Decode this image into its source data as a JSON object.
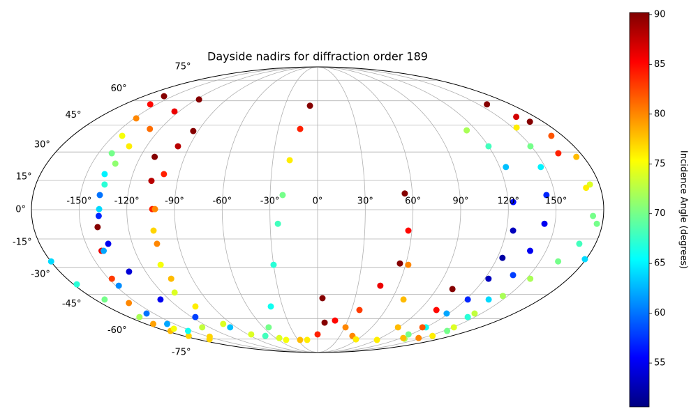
{
  "chart_data": {
    "type": "scatter",
    "projection": "mollweide",
    "title": "Dayside nadirs for diffraction order 189",
    "colormap": "jet",
    "grid": true,
    "colorbar": {
      "label": "Incidence Angle (degrees)",
      "lim": [
        50.6,
        90.2
      ],
      "ticks": [
        55,
        60,
        65,
        70,
        75,
        80,
        85,
        90
      ]
    },
    "xticks": [
      {
        "value": -150,
        "label": "-150°"
      },
      {
        "value": -120,
        "label": "-120°"
      },
      {
        "value": -90,
        "label": "-90°"
      },
      {
        "value": -60,
        "label": "-60°"
      },
      {
        "value": -30,
        "label": "-30°"
      },
      {
        "value": 0,
        "label": "0°"
      },
      {
        "value": 30,
        "label": "30°"
      },
      {
        "value": 60,
        "label": "60°"
      },
      {
        "value": 90,
        "label": "90°"
      },
      {
        "value": 120,
        "label": "120°"
      },
      {
        "value": 150,
        "label": "150°"
      }
    ],
    "yticks": [
      {
        "value": -75,
        "label": "-75°"
      },
      {
        "value": -60,
        "label": "-60°"
      },
      {
        "value": -45,
        "label": "-45°"
      },
      {
        "value": -30,
        "label": "-30°"
      },
      {
        "value": -15,
        "label": "-15°"
      },
      {
        "value": 0,
        "label": "0°"
      },
      {
        "value": 15,
        "label": "15°"
      },
      {
        "value": 30,
        "label": "30°"
      },
      {
        "value": 45,
        "label": "45°"
      },
      {
        "value": 60,
        "label": "60°"
      },
      {
        "value": 75,
        "label": "75°"
      }
    ],
    "series": [
      {
        "x": [
          -159.1,
          -155.9,
          -148.4,
          -143.6,
          -140.9,
          -138.3,
          -137.7,
          -137.8,
          -135.6,
          -131.6,
          -127.1,
          -116.6,
          -97.0,
          -70.2
        ],
        "y": [
          63.1,
          57.7,
          49.0,
          38.9,
          29.3,
          18.3,
          7.5,
          -3.2,
          -17.5,
          -32.3,
          -48.1,
          -59.0,
          -66.0,
          -72.4
        ],
        "values": [
          90,
          85,
          80,
          75,
          70,
          65,
          60,
          57,
          55,
          54,
          55,
          58,
          63,
          68
        ]
      },
      {
        "x": [
          -139.4,
          -141.9,
          -147.8,
          -156.8,
          -172.2,
          -175.0,
          -173.2,
          -162.0
        ],
        "y": [
          -8.9,
          -21.2,
          -36.2,
          -50.2,
          -63.6,
          -68.6,
          -72.4,
          -75.2
        ],
        "values": [
          90,
          86,
          83,
          80,
          79,
          78,
          77,
          77
        ]
      },
      {
        "x": [
          -117.3,
          -124.0,
          -127.9,
          -132.3,
          -134.4,
          -136.1,
          -137.4,
          -140.5,
          -147.7,
          -156.6,
          -157.6,
          -154.1
        ],
        "y": [
          60.9,
          53.2,
          42.8,
          33.1,
          23.8,
          12.9,
          0.3,
          -21.2,
          -40.1,
          -56.7,
          -63.6,
          -68.6
        ],
        "values": [
          90,
          86,
          81,
          76,
          71,
          67,
          64,
          62,
          61,
          60,
          62,
          66
        ]
      },
      {
        "x": [
          -110.3,
          -106.7,
          -104.0,
          -104.0,
          -105.2,
          -104.5,
          -98.9,
          -85.6,
          -48.2,
          -16.0
        ],
        "y": [
          27.4,
          14.8,
          0.3,
          -17.5,
          -36.2,
          -52.3,
          -63.6,
          -71.2,
          -75.7,
          -75.7
        ],
        "values": [
          90,
          88,
          84,
          80,
          78,
          76,
          74,
          74,
          75,
          76
        ]
      },
      {
        "x": [
          -93.7,
          -98.0,
          -99.8,
          -102.3,
          -104.3,
          -107.0,
          -110.4,
          -128.0
        ],
        "y": [
          41.6,
          33.1,
          18.3,
          0.3,
          -10.7,
          -28.6,
          -44.0,
          -66.0
        ],
        "values": [
          90,
          88,
          84,
          80,
          77,
          75,
          74,
          73
        ]
      },
      {
        "x": [
          -7.0,
          -13.3,
          -18.7,
          -22.1,
          -25.1,
          -30.0,
          -40.0,
          -54.3,
          -54.9,
          -26.8,
          0.0,
          7.2
        ],
        "y": [
          56.8,
          42.8,
          25.6,
          7.5,
          -7.2,
          -28.6,
          -52.3,
          -66.0,
          -74.1,
          -75.7,
          -71.2,
          -62.7
        ],
        "values": [
          90,
          84,
          76,
          70,
          68,
          67,
          66,
          70,
          74,
          78,
          84,
          90
        ]
      },
      {
        "x": [
          3.9,
          17.4,
          46.8,
          91.0,
          127.6
        ],
        "y": [
          -47.3,
          -61.3,
          -72.4,
          -75.7,
          -74.7
        ],
        "values": [
          90,
          85,
          80,
          76,
          72
        ]
      },
      {
        "x": [
          112.8,
          120.0,
          124.1,
          123.2,
          124.3,
          123.5,
          122.8,
          121.5,
          118.2,
          120.2,
          117.2
        ],
        "y": [
          42.0,
          33.1,
          22.0,
          3.9,
          -10.7,
          -24.9,
          -36.2,
          -48.1,
          -56.7,
          -66.0,
          -71.2
        ],
        "values": [
          72,
          68,
          63,
          56,
          53,
          52,
          53,
          57,
          62,
          66,
          70
        ]
      },
      {
        "x": [
          153.0,
          149.4,
          147.1,
          144.7,
          143.4,
          139.6,
          138.3,
          138.4,
          143.2,
          154.1
        ],
        "y": [
          43.6,
          33.1,
          22.0,
          7.5,
          -7.2,
          -21.2,
          -34.2,
          -48.1,
          -59.0,
          -68.6
        ],
        "values": [
          76,
          70,
          65,
          57,
          55,
          55,
          58,
          64,
          67,
          70
        ]
      },
      {
        "x": [
          157.8,
          164.4,
          171.8,
          175.2,
          174.0,
          173.4,
          169.5,
          162.3,
          152.8,
          146.2,
          143.8,
          151.2,
          154.4
        ],
        "y": [
          57.7,
          49.9,
          38.9,
          27.4,
          12.9,
          -3.2,
          -17.5,
          -26.8,
          -36.2,
          -46.0,
          -56.7,
          -66.0,
          -72.4
        ],
        "values": [
          90,
          87,
          82,
          78,
          74,
          70,
          68,
          70,
          72,
          72,
          73,
          74,
          76
        ]
      },
      {
        "x": [
          169.5,
          164.8,
          170.9,
          176.5,
          179.2,
          -179.8,
          -177.6,
          -172.3,
          -169.9,
          -163.6,
          -148.2
        ],
        "y": [
          47.0,
          29.3,
          11.2,
          -7.2,
          -25.6,
          -26.8,
          -39.3,
          -48.1,
          -59.0,
          -67.0,
          -73.0
        ],
        "values": [
          90,
          84,
          76,
          70,
          64,
          64,
          67,
          70,
          72,
          75,
          77
        ]
      },
      {
        "x": [
          55.2,
          57.7,
          61.8,
          69.5,
          89.2,
          122.7
        ],
        "y": [
          8.3,
          -10.7,
          -28.6,
          -48.1,
          -66.0,
          -74.1
        ],
        "values": [
          90,
          85,
          80,
          78,
          78,
          78
        ]
      },
      {
        "x": [
          55.9,
          46.6,
          37.0,
          31.0,
          57.5
        ],
        "y": [
          -27.9,
          -40.1,
          -54.5,
          -66.0,
          -75.2
        ],
        "values": [
          90,
          86,
          83,
          80,
          76
        ]
      },
      {
        "x": [
          102.0,
          105.0,
          116.3,
          144.7
        ],
        "y": [
          -42.0,
          -54.5,
          -66.0,
          -74.1
        ],
        "values": [
          90,
          85,
          82,
          80
        ]
      }
    ]
  }
}
